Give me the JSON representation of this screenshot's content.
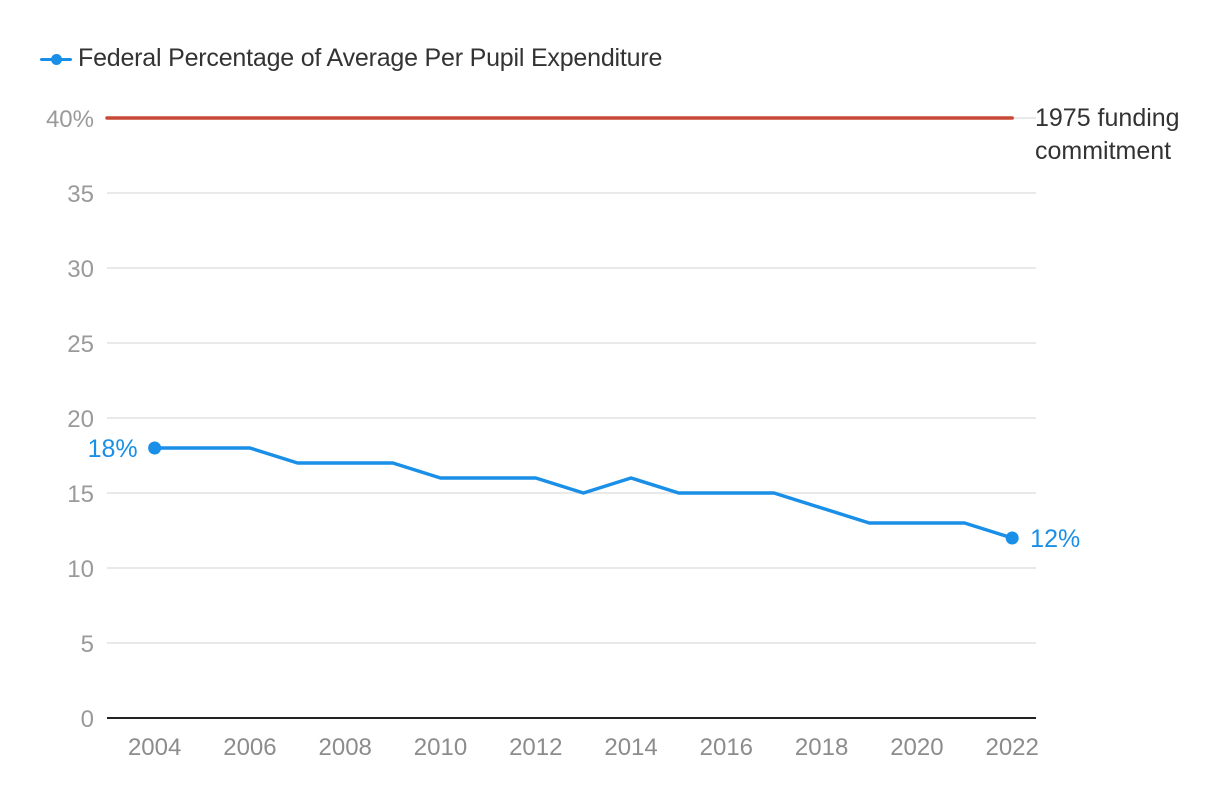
{
  "legend": {
    "label": "Federal Percentage of Average Per Pupil Expenditure"
  },
  "colors": {
    "series": "#1a8fe8",
    "reference": "#c84a36",
    "grid": "#e2e2e2",
    "axis": "#222222"
  },
  "chart_data": {
    "type": "line",
    "x_ticks": [
      2004,
      2006,
      2008,
      2010,
      2012,
      2014,
      2016,
      2018,
      2020,
      2022
    ],
    "y_ticks": [
      0,
      5,
      10,
      15,
      20,
      25,
      30,
      35,
      40
    ],
    "y_tick_labels": [
      "0",
      "5",
      "10",
      "15",
      "20",
      "25",
      "30",
      "35",
      "40%"
    ],
    "xlim": [
      2003,
      2022.5
    ],
    "ylim": [
      0,
      40
    ],
    "grid": true,
    "legend_position": "top-left",
    "series": [
      {
        "name": "Federal Percentage of Average Per Pupil Expenditure",
        "x": [
          2004,
          2005,
          2006,
          2007,
          2008,
          2009,
          2010,
          2011,
          2012,
          2013,
          2014,
          2015,
          2016,
          2017,
          2018,
          2019,
          2020,
          2021,
          2022
        ],
        "y": [
          18,
          18,
          18,
          17,
          17,
          17,
          16,
          16,
          16,
          15,
          16,
          15,
          15,
          15,
          14,
          13,
          13,
          13,
          12
        ],
        "start_label": "18%",
        "end_label": "12%"
      }
    ],
    "reference_line": {
      "y": 40,
      "x_start": 2003,
      "x_end": 2022,
      "label_lines": [
        "1975 funding",
        "commitment"
      ]
    }
  }
}
